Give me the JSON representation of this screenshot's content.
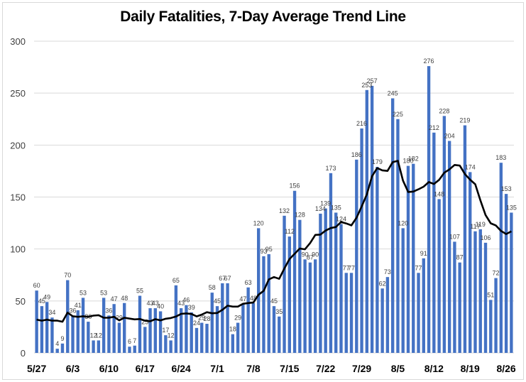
{
  "chart_data": {
    "type": "bar",
    "title": "Daily Fatalities, 7-Day Average Trend Line",
    "xlabel": "",
    "ylabel": "",
    "ylim": [
      0,
      300
    ],
    "yticks": [
      0,
      50,
      100,
      150,
      200,
      250,
      300
    ],
    "grid": true,
    "legend": "none",
    "x_tick_labels": [
      "5/27",
      "6/3",
      "6/10",
      "6/17",
      "6/24",
      "7/1",
      "7/8",
      "7/15",
      "7/22",
      "7/29",
      "8/5",
      "8/12",
      "8/19",
      "8/26"
    ],
    "x_tick_every_days": 7,
    "series": [
      {
        "name": "Daily Fatalities",
        "kind": "bar",
        "color": "#4472c4",
        "values": [
          60,
          45,
          49,
          34,
          4,
          9,
          70,
          36,
          41,
          53,
          30,
          12,
          12,
          53,
          36,
          47,
          29,
          48,
          6,
          7,
          55,
          25,
          43,
          43,
          40,
          17,
          12,
          65,
          43,
          46,
          39,
          24,
          29,
          28,
          58,
          45,
          67,
          67,
          18,
          29,
          47,
          63,
          48,
          120,
          93,
          95,
          45,
          35,
          132,
          112,
          156,
          128,
          90,
          87,
          90,
          134,
          139,
          173,
          135,
          124,
          77,
          77,
          186,
          216,
          253,
          257,
          179,
          62,
          73,
          245,
          225,
          120,
          180,
          182,
          77,
          91,
          276,
          212,
          148,
          228,
          204,
          107,
          87,
          219,
          174,
          117,
          119,
          106,
          51,
          72,
          183,
          153,
          135
        ]
      },
      {
        "name": "7-Day Average",
        "kind": "line",
        "color": "#000000",
        "initial_values": [
          32,
          31,
          32,
          31,
          31,
          30
        ]
      }
    ]
  }
}
